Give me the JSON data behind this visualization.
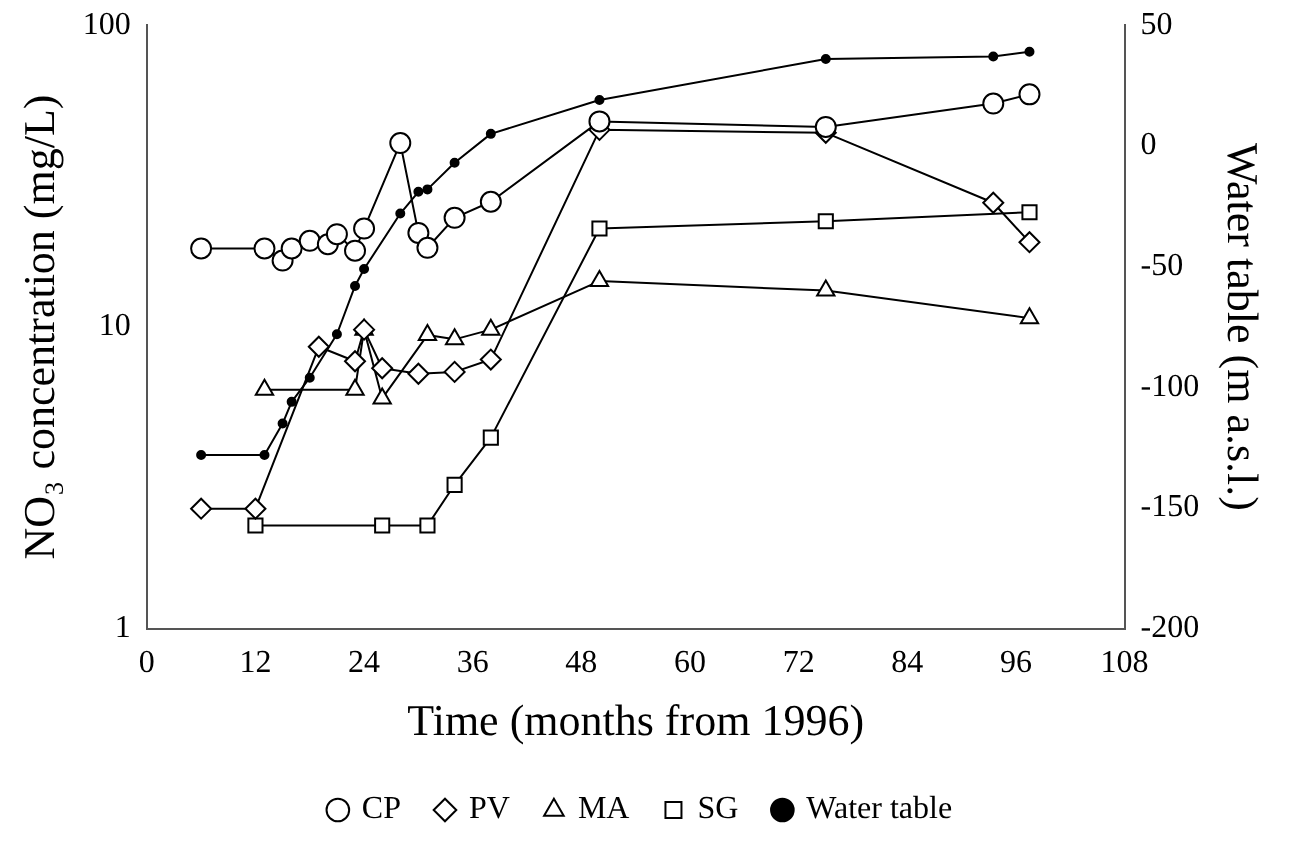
{
  "chart_data": {
    "type": "line",
    "xlabel": "Time (months from 1996)",
    "ylabel": "NO₃ concentration (mg/L)",
    "y2label": "Water table (m a.s.l.)",
    "xlim": [
      0,
      108
    ],
    "xticks": [
      0,
      12,
      24,
      36,
      48,
      60,
      72,
      84,
      96,
      108
    ],
    "ylim": [
      1,
      100
    ],
    "yticks": [
      1,
      10,
      100
    ],
    "y2lim": [
      -200,
      50
    ],
    "y2ticks": [
      -200,
      -150,
      -100,
      -50,
      0,
      50
    ],
    "log": "y",
    "grid": false,
    "legend": "bottom",
    "line_style": "solid",
    "series": [
      {
        "name": "CP",
        "color": "#000000",
        "marker": "circle",
        "x": [
          6,
          13,
          15,
          16,
          18,
          20,
          21,
          23,
          24,
          28,
          30,
          31,
          34,
          38,
          50,
          75,
          93.5,
          97.5
        ],
        "values": [
          18.2,
          18.2,
          16.6,
          18.2,
          19.3,
          18.8,
          20.3,
          17.9,
          21.2,
          40.7,
          20.5,
          18.3,
          23,
          26,
          48,
          46,
          55,
          59
        ]
      },
      {
        "name": "PV",
        "color": "#000000",
        "marker": "diamond",
        "x": [
          6,
          12,
          19,
          23,
          24,
          26,
          30,
          34,
          38,
          50,
          75,
          93.5,
          97.5
        ],
        "values": [
          2.5,
          2.5,
          8.6,
          7.7,
          9.8,
          7.3,
          7,
          7.1,
          7.8,
          45,
          44,
          25.8,
          19.1
        ]
      },
      {
        "name": "MA",
        "color": "#000000",
        "marker": "triangle",
        "x": [
          13,
          23,
          24,
          26,
          31,
          34,
          38,
          50,
          75,
          97.5
        ],
        "values": [
          6.2,
          6.2,
          9.8,
          5.8,
          9.4,
          9.1,
          9.8,
          14.2,
          13.2,
          10.7
        ]
      },
      {
        "name": "SG",
        "color": "#000000",
        "marker": "square",
        "x": [
          12,
          26,
          31,
          34,
          38,
          50,
          75,
          97.5
        ],
        "values": [
          2.2,
          2.2,
          2.2,
          3,
          4.3,
          21.2,
          22.4,
          24
        ]
      },
      {
        "name": "Water table",
        "color": "#000000",
        "marker": "circle",
        "axis": "y2",
        "x": [
          6,
          13,
          15,
          16,
          18,
          21,
          23,
          24,
          28,
          30,
          31,
          34,
          38,
          50,
          75,
          93.5,
          97.5
        ],
        "values": [
          -128,
          -128,
          -115,
          -106,
          -96,
          -78,
          -58,
          -51,
          -28,
          -19,
          -18,
          -7,
          5,
          19,
          36,
          37,
          39
        ]
      }
    ]
  }
}
